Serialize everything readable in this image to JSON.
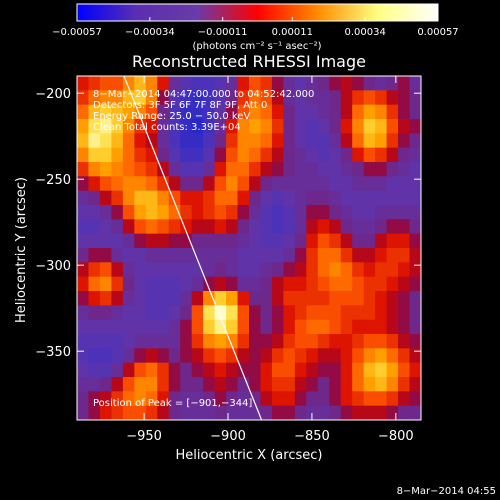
{
  "chart_data": {
    "type": "heatmap",
    "title": "Reconstructed RHESSI Image",
    "xlabel": "Heliocentric X (arcsec)",
    "ylabel": "Heliocentric Y (arcsec)",
    "xlim": [
      -990,
      -785
    ],
    "ylim": [
      -390,
      -190
    ],
    "x_ticks": [
      -950,
      -900,
      -850,
      -800
    ],
    "y_ticks": [
      -350,
      -300,
      -250,
      -200
    ],
    "x_tick_labels": [
      "−950",
      "−900",
      "−850",
      "−800"
    ],
    "y_tick_labels": [
      "−350",
      "−300",
      "−250",
      "−200"
    ],
    "grid": false,
    "colorbar": {
      "position": "top",
      "range": [
        -0.00057,
        0.00057
      ],
      "ticks": [
        -0.00057,
        -0.00034,
        -0.00011,
        0.00011,
        0.00034,
        0.00057
      ],
      "tick_labels": [
        "−0.00057",
        "−0.00034",
        "−0.00011",
        "0.00011",
        "0.00034",
        "0.00057"
      ],
      "unit_label": "(photons cm⁻² s⁻¹ asec⁻²)",
      "colors": [
        "#0000ff",
        "#5a2fb0",
        "#6a3aa8",
        "#ff0000",
        "#ff8c00",
        "#ffff80",
        "#ffffff"
      ]
    },
    "annotations": [
      "8−Mar−2014 04:47:00.000  to 04:52:42.000",
      "Detectors: 3F 5F 6F 7F 8F 9F, Att 0",
      "Energy Range: 25.0 − 50.0 keV",
      "Clean    Total counts: 3.39E+04"
    ],
    "peak_label": "Position of Peak = [−901,−344]",
    "peak": [
      -901,
      -344
    ],
    "limb_line": [
      [
        -962,
        -190
      ],
      [
        -880,
        -390
      ]
    ],
    "intensity_grid": [
      [
        0.5,
        0.55,
        0.6,
        0.6,
        0.7,
        0.8,
        0.7,
        0.5,
        0.3,
        0.2,
        0.15,
        0.15,
        0.2,
        0.3,
        0.5,
        0.6,
        0.55,
        0.4,
        0.3,
        0.25,
        0.3,
        0.35,
        0.4,
        0.45,
        0.4,
        0.35,
        0.3,
        0.35,
        0.4,
        0.3
      ],
      [
        0.55,
        0.65,
        0.7,
        0.7,
        0.8,
        0.85,
        0.7,
        0.4,
        0.2,
        0.1,
        0.05,
        0.1,
        0.2,
        0.35,
        0.55,
        0.65,
        0.6,
        0.45,
        0.3,
        0.25,
        0.3,
        0.3,
        0.35,
        0.45,
        0.55,
        0.6,
        0.55,
        0.45,
        0.4,
        0.35
      ],
      [
        0.65,
        0.8,
        0.85,
        0.8,
        0.75,
        0.7,
        0.6,
        0.35,
        0.15,
        0.05,
        0.05,
        0.1,
        0.25,
        0.4,
        0.6,
        0.7,
        0.65,
        0.5,
        0.35,
        0.25,
        0.25,
        0.3,
        0.35,
        0.45,
        0.65,
        0.75,
        0.7,
        0.55,
        0.4,
        0.35
      ],
      [
        0.75,
        0.9,
        0.95,
        0.85,
        0.7,
        0.55,
        0.5,
        0.3,
        0.15,
        0.05,
        0.0,
        0.1,
        0.3,
        0.5,
        0.7,
        0.75,
        0.7,
        0.55,
        0.35,
        0.25,
        0.2,
        0.25,
        0.35,
        0.5,
        0.7,
        0.85,
        0.8,
        0.6,
        0.45,
        0.4
      ],
      [
        0.8,
        0.95,
        0.9,
        0.8,
        0.65,
        0.5,
        0.45,
        0.3,
        0.15,
        0.05,
        0.05,
        0.15,
        0.35,
        0.55,
        0.7,
        0.7,
        0.65,
        0.5,
        0.35,
        0.25,
        0.2,
        0.2,
        0.3,
        0.45,
        0.65,
        0.8,
        0.75,
        0.55,
        0.4,
        0.35
      ],
      [
        0.7,
        0.85,
        0.85,
        0.75,
        0.65,
        0.55,
        0.5,
        0.35,
        0.2,
        0.1,
        0.1,
        0.2,
        0.4,
        0.6,
        0.7,
        0.65,
        0.55,
        0.45,
        0.35,
        0.3,
        0.25,
        0.2,
        0.25,
        0.35,
        0.5,
        0.6,
        0.55,
        0.45,
        0.35,
        0.3
      ],
      [
        0.55,
        0.7,
        0.75,
        0.7,
        0.65,
        0.6,
        0.55,
        0.45,
        0.3,
        0.2,
        0.2,
        0.3,
        0.5,
        0.65,
        0.65,
        0.55,
        0.45,
        0.4,
        0.35,
        0.3,
        0.3,
        0.25,
        0.25,
        0.3,
        0.35,
        0.4,
        0.4,
        0.35,
        0.3,
        0.25
      ],
      [
        0.4,
        0.5,
        0.6,
        0.65,
        0.7,
        0.7,
        0.65,
        0.55,
        0.45,
        0.35,
        0.35,
        0.45,
        0.6,
        0.7,
        0.6,
        0.45,
        0.35,
        0.3,
        0.3,
        0.3,
        0.3,
        0.3,
        0.25,
        0.25,
        0.3,
        0.3,
        0.3,
        0.25,
        0.25,
        0.25
      ],
      [
        0.3,
        0.35,
        0.45,
        0.55,
        0.7,
        0.8,
        0.8,
        0.7,
        0.6,
        0.5,
        0.5,
        0.55,
        0.65,
        0.65,
        0.5,
        0.35,
        0.25,
        0.2,
        0.25,
        0.3,
        0.35,
        0.35,
        0.3,
        0.25,
        0.25,
        0.25,
        0.25,
        0.25,
        0.25,
        0.25
      ],
      [
        0.25,
        0.25,
        0.3,
        0.4,
        0.6,
        0.75,
        0.8,
        0.75,
        0.65,
        0.55,
        0.5,
        0.55,
        0.6,
        0.55,
        0.4,
        0.3,
        0.2,
        0.15,
        0.2,
        0.3,
        0.4,
        0.4,
        0.35,
        0.3,
        0.25,
        0.25,
        0.3,
        0.3,
        0.3,
        0.3
      ],
      [
        0.2,
        0.2,
        0.25,
        0.3,
        0.45,
        0.6,
        0.65,
        0.6,
        0.55,
        0.5,
        0.45,
        0.45,
        0.5,
        0.45,
        0.35,
        0.25,
        0.2,
        0.15,
        0.2,
        0.3,
        0.45,
        0.5,
        0.45,
        0.35,
        0.3,
        0.3,
        0.35,
        0.4,
        0.4,
        0.35
      ],
      [
        0.25,
        0.25,
        0.25,
        0.25,
        0.3,
        0.4,
        0.45,
        0.45,
        0.4,
        0.4,
        0.35,
        0.35,
        0.35,
        0.35,
        0.3,
        0.25,
        0.2,
        0.2,
        0.25,
        0.35,
        0.5,
        0.6,
        0.55,
        0.45,
        0.35,
        0.35,
        0.45,
        0.5,
        0.5,
        0.4
      ],
      [
        0.35,
        0.4,
        0.4,
        0.3,
        0.25,
        0.25,
        0.3,
        0.3,
        0.3,
        0.3,
        0.3,
        0.3,
        0.3,
        0.3,
        0.25,
        0.25,
        0.25,
        0.25,
        0.3,
        0.4,
        0.55,
        0.65,
        0.65,
        0.55,
        0.45,
        0.45,
        0.5,
        0.55,
        0.55,
        0.45
      ],
      [
        0.45,
        0.55,
        0.6,
        0.45,
        0.3,
        0.25,
        0.25,
        0.25,
        0.25,
        0.25,
        0.25,
        0.3,
        0.35,
        0.3,
        0.25,
        0.25,
        0.3,
        0.35,
        0.4,
        0.45,
        0.55,
        0.65,
        0.7,
        0.65,
        0.55,
        0.5,
        0.55,
        0.55,
        0.5,
        0.45
      ],
      [
        0.5,
        0.65,
        0.7,
        0.55,
        0.35,
        0.25,
        0.2,
        0.2,
        0.2,
        0.25,
        0.3,
        0.4,
        0.45,
        0.4,
        0.3,
        0.3,
        0.35,
        0.45,
        0.5,
        0.5,
        0.55,
        0.6,
        0.65,
        0.65,
        0.6,
        0.55,
        0.55,
        0.5,
        0.45,
        0.4
      ],
      [
        0.4,
        0.5,
        0.55,
        0.45,
        0.3,
        0.25,
        0.2,
        0.2,
        0.2,
        0.3,
        0.45,
        0.7,
        0.85,
        0.75,
        0.5,
        0.35,
        0.35,
        0.45,
        0.55,
        0.55,
        0.55,
        0.55,
        0.6,
        0.6,
        0.6,
        0.55,
        0.5,
        0.45,
        0.4,
        0.35
      ],
      [
        0.3,
        0.35,
        0.35,
        0.3,
        0.25,
        0.25,
        0.2,
        0.2,
        0.25,
        0.35,
        0.6,
        0.9,
        1.0,
        0.9,
        0.6,
        0.4,
        0.35,
        0.4,
        0.5,
        0.55,
        0.6,
        0.6,
        0.6,
        0.55,
        0.55,
        0.55,
        0.5,
        0.45,
        0.4,
        0.35
      ],
      [
        0.25,
        0.25,
        0.25,
        0.25,
        0.25,
        0.25,
        0.25,
        0.25,
        0.3,
        0.4,
        0.6,
        0.85,
        0.95,
        0.85,
        0.6,
        0.4,
        0.35,
        0.4,
        0.5,
        0.6,
        0.65,
        0.65,
        0.6,
        0.55,
        0.5,
        0.5,
        0.5,
        0.45,
        0.4,
        0.35
      ],
      [
        0.2,
        0.2,
        0.2,
        0.2,
        0.25,
        0.3,
        0.3,
        0.3,
        0.3,
        0.4,
        0.55,
        0.7,
        0.75,
        0.7,
        0.55,
        0.4,
        0.4,
        0.45,
        0.55,
        0.6,
        0.6,
        0.55,
        0.5,
        0.5,
        0.55,
        0.6,
        0.6,
        0.55,
        0.45,
        0.4
      ],
      [
        0.2,
        0.15,
        0.15,
        0.2,
        0.3,
        0.4,
        0.45,
        0.4,
        0.35,
        0.4,
        0.45,
        0.55,
        0.6,
        0.55,
        0.45,
        0.4,
        0.45,
        0.55,
        0.6,
        0.55,
        0.5,
        0.45,
        0.45,
        0.5,
        0.6,
        0.7,
        0.75,
        0.65,
        0.55,
        0.45
      ],
      [
        0.25,
        0.2,
        0.2,
        0.3,
        0.45,
        0.6,
        0.65,
        0.55,
        0.4,
        0.35,
        0.4,
        0.45,
        0.5,
        0.45,
        0.4,
        0.4,
        0.5,
        0.6,
        0.6,
        0.5,
        0.45,
        0.4,
        0.4,
        0.5,
        0.65,
        0.8,
        0.85,
        0.75,
        0.6,
        0.5
      ],
      [
        0.3,
        0.3,
        0.35,
        0.45,
        0.6,
        0.7,
        0.7,
        0.55,
        0.4,
        0.35,
        0.35,
        0.4,
        0.45,
        0.4,
        0.35,
        0.4,
        0.5,
        0.55,
        0.55,
        0.45,
        0.4,
        0.35,
        0.4,
        0.5,
        0.65,
        0.75,
        0.8,
        0.7,
        0.55,
        0.45
      ],
      [
        0.35,
        0.4,
        0.45,
        0.55,
        0.65,
        0.7,
        0.65,
        0.5,
        0.35,
        0.3,
        0.3,
        0.35,
        0.4,
        0.35,
        0.3,
        0.35,
        0.45,
        0.5,
        0.5,
        0.4,
        0.35,
        0.35,
        0.4,
        0.5,
        0.55,
        0.6,
        0.6,
        0.55,
        0.45,
        0.4
      ],
      [
        0.35,
        0.4,
        0.5,
        0.55,
        0.6,
        0.6,
        0.55,
        0.45,
        0.35,
        0.3,
        0.3,
        0.3,
        0.35,
        0.3,
        0.3,
        0.3,
        0.35,
        0.4,
        0.4,
        0.35,
        0.3,
        0.3,
        0.35,
        0.4,
        0.45,
        0.45,
        0.45,
        0.4,
        0.35,
        0.35
      ]
    ]
  },
  "footer": {
    "timestamp": "8−Mar−2014 04:55"
  }
}
